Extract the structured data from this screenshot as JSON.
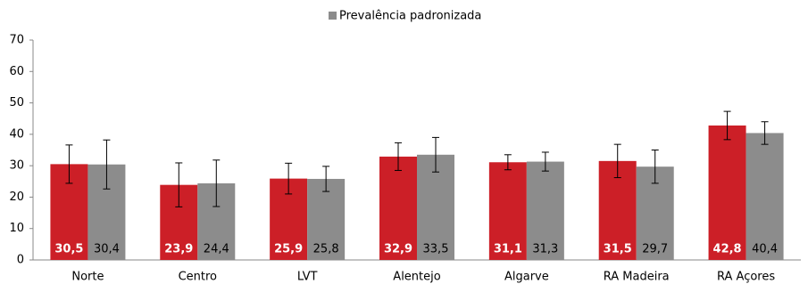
{
  "chart_data": {
    "type": "bar",
    "categories": [
      "Norte",
      "Centro",
      "LVT",
      "Alentejo",
      "Algarve",
      "RA Madeira",
      "RA Açores"
    ],
    "series": [
      {
        "color": "#cc1f27",
        "values": [
          30.5,
          23.9,
          25.9,
          32.9,
          31.1,
          31.5,
          42.8
        ],
        "value_labels": [
          "30,5",
          "23,9",
          "25,9",
          "32,9",
          "31,1",
          "31,5",
          "42,8"
        ],
        "errors": [
          6.1,
          7.0,
          4.9,
          4.4,
          2.4,
          5.3,
          4.5
        ]
      },
      {
        "name": "Prevalência padronizada",
        "color": "#8c8c8c",
        "values": [
          30.4,
          24.4,
          25.8,
          33.5,
          31.3,
          29.7,
          40.4
        ],
        "value_labels": [
          "30,4",
          "24,4",
          "25,8",
          "33,5",
          "31,3",
          "29,7",
          "40,4"
        ],
        "errors": [
          7.8,
          7.4,
          4.0,
          5.5,
          3.0,
          5.3,
          3.6
        ]
      }
    ],
    "ylim": [
      0,
      70
    ],
    "yticks": [
      0,
      10,
      20,
      30,
      40,
      50,
      60,
      70
    ],
    "grid": false
  }
}
